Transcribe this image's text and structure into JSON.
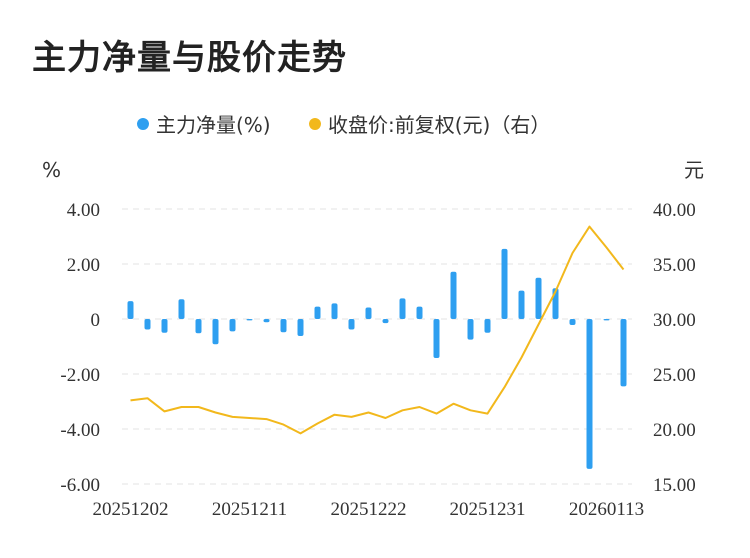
{
  "title": "主力净量与股价走势",
  "chart_data": {
    "type": "bar+line",
    "legend": [
      {
        "label": "主力净量(%)",
        "color": "#2e9ff0"
      },
      {
        "label": "收盘价:前复权(元)（右）",
        "color": "#f2b81c"
      }
    ],
    "left_unit": "%",
    "right_unit": "元",
    "left_ticks": [
      "4.00",
      "2.00",
      "0",
      "-2.00",
      "-4.00",
      "-6.00"
    ],
    "right_ticks": [
      "40.00",
      "35.00",
      "30.00",
      "25.00",
      "20.00",
      "15.00"
    ],
    "ylim_left": [
      -6,
      4
    ],
    "ylim_right": [
      15,
      40
    ],
    "x_tick_labels": [
      "20251202",
      "20251211",
      "20251222",
      "20251231",
      "20260113"
    ],
    "x_tick_indices": [
      0,
      7,
      14,
      21,
      28
    ],
    "series": [
      {
        "name": "主力净量(%)",
        "type": "bar",
        "values": [
          0.65,
          -0.38,
          -0.5,
          0.72,
          -0.52,
          -0.92,
          -0.45,
          -0.05,
          -0.12,
          -0.48,
          -0.62,
          0.45,
          0.57,
          -0.38,
          0.42,
          -0.15,
          0.75,
          0.45,
          -1.42,
          1.72,
          -0.75,
          -0.5,
          2.55,
          1.03,
          1.5,
          1.12,
          -0.22,
          -5.45,
          -0.05,
          -2.45
        ]
      },
      {
        "name": "收盘价:前复权(元)（右）",
        "type": "line",
        "values": [
          22.6,
          22.8,
          21.6,
          22.0,
          22.0,
          21.5,
          21.1,
          21.0,
          20.9,
          20.4,
          19.6,
          20.5,
          21.3,
          21.1,
          21.5,
          21.0,
          21.7,
          22.0,
          21.4,
          22.3,
          21.7,
          21.4,
          23.8,
          26.5,
          29.5,
          32.5,
          36.0,
          38.4,
          36.5,
          34.5
        ]
      }
    ]
  }
}
